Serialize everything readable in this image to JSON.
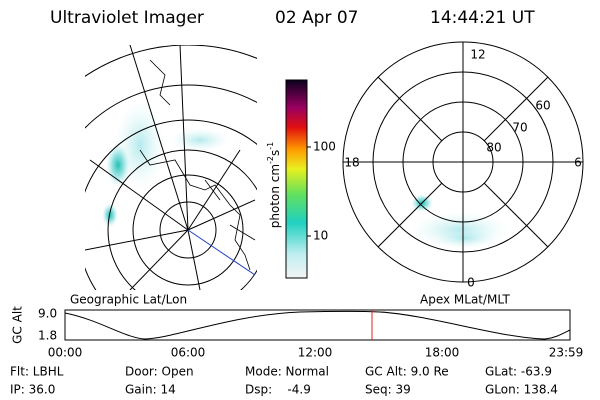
{
  "header": {
    "title": "Ultraviolet Imager",
    "date": "02 Apr 07",
    "time": "14:44:21 UT"
  },
  "colorbar": {
    "ticks": [
      "100",
      "10"
    ],
    "label": {
      "base": "photon cm",
      "exp1": "-2",
      "unit2": "s",
      "exp2": "-1"
    }
  },
  "polar_plot": {
    "mlt_labels": [
      "12",
      "18",
      "6",
      "0"
    ],
    "mlat_labels": [
      "60",
      "70",
      "80"
    ]
  },
  "panel_labels": {
    "left": "Geographic Lat/Lon",
    "right": "Apex MLat/MLT"
  },
  "altitude_plot": {
    "axis_label": "GC Alt",
    "y_labels": [
      "9.0",
      "1.8"
    ],
    "x_labels": [
      "00:00",
      "06:00",
      "12:00",
      "18:00",
      "23:59"
    ]
  },
  "footer": {
    "rows": [
      [
        "Flt: LBHL",
        "Door: Open",
        "Mode: Normal",
        "GC Alt: 9.0 Re",
        "GLat: -63.9"
      ],
      [
        "IP: 36.0",
        "Gain: 14",
        "Dsp:    -4.9",
        "Seq: 39",
        "GLon: 138.4"
      ]
    ]
  }
}
